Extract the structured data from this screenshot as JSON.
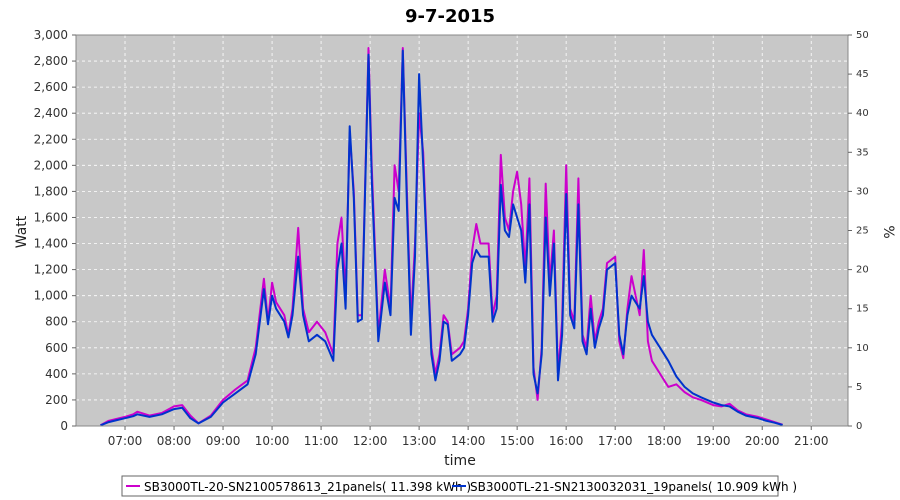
{
  "chart_data": {
    "type": "line",
    "title": "9-7-2015",
    "xlabel": "time",
    "ylabel": "Watt",
    "y2label": "%",
    "xlim": [
      "06:00",
      "21:45"
    ],
    "ylim": [
      0,
      3000
    ],
    "y2lim": [
      0,
      50
    ],
    "xticks": [
      "07:00",
      "08:00",
      "09:00",
      "10:00",
      "11:00",
      "12:00",
      "13:00",
      "14:00",
      "15:00",
      "16:00",
      "17:00",
      "18:00",
      "19:00",
      "20:00",
      "21:00"
    ],
    "yticks": [
      "0",
      "200",
      "400",
      "600",
      "800",
      "1,000",
      "1,200",
      "1,400",
      "1,600",
      "1,800",
      "2,000",
      "2,200",
      "2,400",
      "2,600",
      "2,800",
      "3,000"
    ],
    "y2ticks": [
      "0",
      "5",
      "10",
      "15",
      "20",
      "25",
      "30",
      "35",
      "40",
      "45",
      "50"
    ],
    "grid": true,
    "plot_background": "#c8c8c8",
    "legend_position": "bottom",
    "series": [
      {
        "name": "SB3000TL-20-SN2100578613_21panels( 11.398 kWh )",
        "color": "#cc00cc",
        "points": [
          [
            "06:30",
            5
          ],
          [
            "06:40",
            40
          ],
          [
            "06:50",
            55
          ],
          [
            "07:00",
            70
          ],
          [
            "07:10",
            90
          ],
          [
            "07:15",
            110
          ],
          [
            "07:30",
            80
          ],
          [
            "07:45",
            100
          ],
          [
            "08:00",
            150
          ],
          [
            "08:10",
            160
          ],
          [
            "08:20",
            80
          ],
          [
            "08:30",
            20
          ],
          [
            "08:45",
            80
          ],
          [
            "09:00",
            200
          ],
          [
            "09:15",
            280
          ],
          [
            "09:30",
            350
          ],
          [
            "09:40",
            600
          ],
          [
            "09:50",
            1130
          ],
          [
            "09:55",
            800
          ],
          [
            "10:00",
            1100
          ],
          [
            "10:05",
            950
          ],
          [
            "10:15",
            850
          ],
          [
            "10:20",
            700
          ],
          [
            "10:25",
            900
          ],
          [
            "10:32",
            1520
          ],
          [
            "10:38",
            900
          ],
          [
            "10:45",
            720
          ],
          [
            "10:55",
            800
          ],
          [
            "11:05",
            720
          ],
          [
            "11:15",
            550
          ],
          [
            "11:20",
            1400
          ],
          [
            "11:25",
            1600
          ],
          [
            "11:30",
            1000
          ],
          [
            "11:35",
            2250
          ],
          [
            "11:40",
            1800
          ],
          [
            "11:45",
            850
          ],
          [
            "11:50",
            850
          ],
          [
            "11:58",
            2900
          ],
          [
            "12:02",
            2000
          ],
          [
            "12:10",
            700
          ],
          [
            "12:18",
            1200
          ],
          [
            "12:25",
            900
          ],
          [
            "12:30",
            2000
          ],
          [
            "12:35",
            1800
          ],
          [
            "12:40",
            2900
          ],
          [
            "12:45",
            1800
          ],
          [
            "12:50",
            800
          ],
          [
            "12:55",
            1400
          ],
          [
            "13:00",
            2400
          ],
          [
            "13:05",
            2100
          ],
          [
            "13:10",
            1300
          ],
          [
            "13:15",
            600
          ],
          [
            "13:20",
            400
          ],
          [
            "13:25",
            550
          ],
          [
            "13:30",
            850
          ],
          [
            "13:35",
            800
          ],
          [
            "13:40",
            550
          ],
          [
            "13:50",
            600
          ],
          [
            "13:55",
            650
          ],
          [
            "14:00",
            900
          ],
          [
            "14:05",
            1350
          ],
          [
            "14:10",
            1550
          ],
          [
            "14:15",
            1400
          ],
          [
            "14:25",
            1400
          ],
          [
            "14:30",
            850
          ],
          [
            "14:35",
            1000
          ],
          [
            "14:40",
            2080
          ],
          [
            "14:45",
            1600
          ],
          [
            "14:50",
            1500
          ],
          [
            "14:55",
            1800
          ],
          [
            "15:00",
            1950
          ],
          [
            "15:05",
            1700
          ],
          [
            "15:10",
            1200
          ],
          [
            "15:15",
            1900
          ],
          [
            "15:20",
            450
          ],
          [
            "15:25",
            200
          ],
          [
            "15:30",
            600
          ],
          [
            "15:35",
            1860
          ],
          [
            "15:40",
            1100
          ],
          [
            "15:45",
            1500
          ],
          [
            "15:50",
            400
          ],
          [
            "15:55",
            800
          ],
          [
            "16:00",
            2000
          ],
          [
            "16:05",
            900
          ],
          [
            "16:10",
            800
          ],
          [
            "16:15",
            1900
          ],
          [
            "16:20",
            700
          ],
          [
            "16:25",
            600
          ],
          [
            "16:30",
            1000
          ],
          [
            "16:35",
            650
          ],
          [
            "16:40",
            800
          ],
          [
            "16:45",
            900
          ],
          [
            "16:50",
            1250
          ],
          [
            "17:00",
            1300
          ],
          [
            "17:05",
            650
          ],
          [
            "17:10",
            520
          ],
          [
            "17:15",
            900
          ],
          [
            "17:20",
            1150
          ],
          [
            "17:30",
            850
          ],
          [
            "17:35",
            1350
          ],
          [
            "17:40",
            650
          ],
          [
            "17:45",
            500
          ],
          [
            "17:55",
            400
          ],
          [
            "18:05",
            300
          ],
          [
            "18:15",
            320
          ],
          [
            "18:25",
            260
          ],
          [
            "18:35",
            220
          ],
          [
            "18:45",
            200
          ],
          [
            "19:00",
            160
          ],
          [
            "19:10",
            150
          ],
          [
            "19:20",
            170
          ],
          [
            "19:30",
            120
          ],
          [
            "19:40",
            90
          ],
          [
            "19:55",
            70
          ],
          [
            "20:05",
            50
          ],
          [
            "20:15",
            30
          ],
          [
            "20:25",
            10
          ]
        ]
      },
      {
        "name": "SB3000TL-21-SN2130032031_19panels( 10.909 kWh )",
        "color": "#0033cc",
        "points": [
          [
            "06:30",
            5
          ],
          [
            "06:40",
            30
          ],
          [
            "06:50",
            45
          ],
          [
            "07:00",
            60
          ],
          [
            "07:10",
            75
          ],
          [
            "07:15",
            90
          ],
          [
            "07:30",
            70
          ],
          [
            "07:45",
            90
          ],
          [
            "08:00",
            130
          ],
          [
            "08:10",
            140
          ],
          [
            "08:20",
            60
          ],
          [
            "08:30",
            20
          ],
          [
            "08:45",
            70
          ],
          [
            "09:00",
            180
          ],
          [
            "09:15",
            250
          ],
          [
            "09:30",
            320
          ],
          [
            "09:40",
            550
          ],
          [
            "09:50",
            1050
          ],
          [
            "09:55",
            780
          ],
          [
            "10:00",
            1000
          ],
          [
            "10:05",
            900
          ],
          [
            "10:15",
            800
          ],
          [
            "10:20",
            680
          ],
          [
            "10:25",
            850
          ],
          [
            "10:32",
            1300
          ],
          [
            "10:38",
            850
          ],
          [
            "10:45",
            650
          ],
          [
            "10:55",
            700
          ],
          [
            "11:05",
            650
          ],
          [
            "11:15",
            500
          ],
          [
            "11:20",
            1200
          ],
          [
            "11:25",
            1400
          ],
          [
            "11:30",
            900
          ],
          [
            "11:35",
            2300
          ],
          [
            "11:40",
            1750
          ],
          [
            "11:45",
            800
          ],
          [
            "11:50",
            820
          ],
          [
            "11:58",
            2850
          ],
          [
            "12:02",
            1900
          ],
          [
            "12:10",
            650
          ],
          [
            "12:18",
            1100
          ],
          [
            "12:25",
            850
          ],
          [
            "12:30",
            1750
          ],
          [
            "12:35",
            1650
          ],
          [
            "12:40",
            2880
          ],
          [
            "12:45",
            1700
          ],
          [
            "12:50",
            700
          ],
          [
            "12:55",
            1300
          ],
          [
            "13:00",
            2700
          ],
          [
            "13:05",
            2000
          ],
          [
            "13:10",
            1250
          ],
          [
            "13:15",
            550
          ],
          [
            "13:20",
            350
          ],
          [
            "13:25",
            500
          ],
          [
            "13:30",
            800
          ],
          [
            "13:35",
            780
          ],
          [
            "13:40",
            500
          ],
          [
            "13:50",
            550
          ],
          [
            "13:55",
            600
          ],
          [
            "14:00",
            850
          ],
          [
            "14:05",
            1250
          ],
          [
            "14:10",
            1350
          ],
          [
            "14:15",
            1300
          ],
          [
            "14:25",
            1300
          ],
          [
            "14:30",
            800
          ],
          [
            "14:35",
            900
          ],
          [
            "14:40",
            1850
          ],
          [
            "14:45",
            1500
          ],
          [
            "14:50",
            1450
          ],
          [
            "14:55",
            1700
          ],
          [
            "15:00",
            1600
          ],
          [
            "15:05",
            1500
          ],
          [
            "15:10",
            1100
          ],
          [
            "15:15",
            1700
          ],
          [
            "15:20",
            400
          ],
          [
            "15:25",
            250
          ],
          [
            "15:30",
            550
          ],
          [
            "15:35",
            1600
          ],
          [
            "15:40",
            1000
          ],
          [
            "15:45",
            1400
          ],
          [
            "15:50",
            350
          ],
          [
            "15:55",
            700
          ],
          [
            "16:00",
            1780
          ],
          [
            "16:05",
            850
          ],
          [
            "16:10",
            750
          ],
          [
            "16:15",
            1700
          ],
          [
            "16:20",
            650
          ],
          [
            "16:25",
            550
          ],
          [
            "16:30",
            900
          ],
          [
            "16:35",
            600
          ],
          [
            "16:40",
            750
          ],
          [
            "16:45",
            850
          ],
          [
            "16:50",
            1200
          ],
          [
            "17:00",
            1250
          ],
          [
            "17:05",
            700
          ],
          [
            "17:10",
            550
          ],
          [
            "17:15",
            850
          ],
          [
            "17:20",
            1000
          ],
          [
            "17:30",
            900
          ],
          [
            "17:35",
            1150
          ],
          [
            "17:40",
            800
          ],
          [
            "17:45",
            700
          ],
          [
            "17:55",
            600
          ],
          [
            "18:05",
            500
          ],
          [
            "18:15",
            380
          ],
          [
            "18:25",
            300
          ],
          [
            "18:35",
            250
          ],
          [
            "18:45",
            220
          ],
          [
            "19:00",
            180
          ],
          [
            "19:10",
            160
          ],
          [
            "19:20",
            150
          ],
          [
            "19:30",
            110
          ],
          [
            "19:40",
            80
          ],
          [
            "19:55",
            60
          ],
          [
            "20:05",
            40
          ],
          [
            "20:15",
            25
          ],
          [
            "20:25",
            8
          ]
        ]
      }
    ]
  }
}
